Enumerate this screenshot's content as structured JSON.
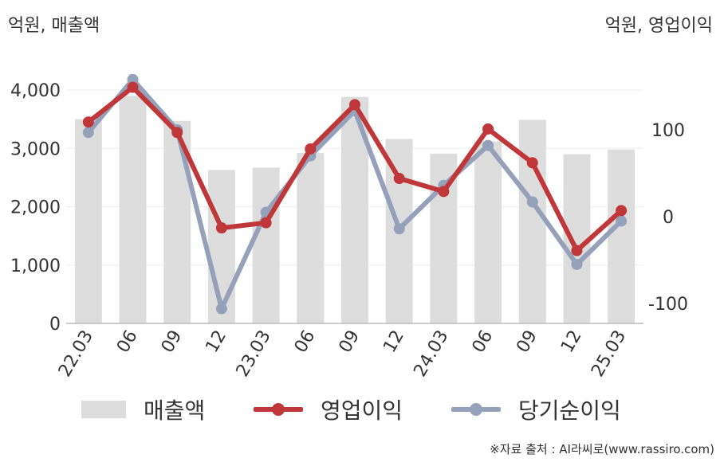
{
  "units": {
    "left": "억원, 매출액",
    "right": "억원, 영업이익"
  },
  "legend": {
    "bar": "매출액",
    "line1": "영업이익",
    "line2": "당기순이익"
  },
  "source": "※자료 출처 : AI라씨로(www.rassiro.com)",
  "colors": {
    "bar": "#dddddd",
    "line1": "#c0373a",
    "line2": "#95a1bb",
    "axis": "#bbbbbb",
    "grid": "#eeeeee"
  },
  "chart_data": {
    "type": "bar+line",
    "categories": [
      "22.03",
      "06",
      "09",
      "12",
      "23.03",
      "06",
      "09",
      "12",
      "24.03",
      "06",
      "09",
      "12",
      "25.03"
    ],
    "left_axis": {
      "ticks": [
        "0",
        "1,000",
        "2,000",
        "3,000",
        "4,000"
      ],
      "ylim": [
        0,
        4000
      ]
    },
    "right_axis": {
      "ticks": [
        "-100",
        "0",
        "100"
      ],
      "ylim": [
        -120,
        160
      ]
    },
    "series": [
      {
        "name": "매출액",
        "axis": "left",
        "type": "bar",
        "values": [
          3500,
          3900,
          3470,
          2630,
          2670,
          2920,
          3880,
          3160,
          2910,
          3120,
          3490,
          2900,
          2980
        ]
      },
      {
        "name": "영업이익",
        "axis": "right",
        "type": "line",
        "values": [
          109,
          149,
          97,
          -13,
          -7,
          78,
          129,
          44,
          29,
          101,
          62,
          -39,
          7
        ]
      },
      {
        "name": "당기순이익",
        "axis": "right",
        "type": "line",
        "values": [
          97,
          158,
          100,
          -106,
          5,
          70,
          122,
          -14,
          36,
          82,
          17,
          -55,
          -5
        ]
      }
    ],
    "grid": true,
    "legend_position": "bottom"
  }
}
